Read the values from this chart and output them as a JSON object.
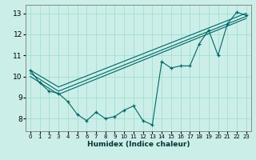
{
  "xlabel": "Humidex (Indice chaleur)",
  "background_color": "#cceee8",
  "grid_color": "#99ddcc",
  "line_color": "#006666",
  "xlim": [
    -0.5,
    23.5
  ],
  "ylim": [
    7.4,
    13.4
  ],
  "xticks": [
    0,
    1,
    2,
    3,
    4,
    5,
    6,
    7,
    8,
    9,
    10,
    11,
    12,
    13,
    14,
    15,
    16,
    17,
    18,
    19,
    20,
    21,
    22,
    23
  ],
  "yticks": [
    8,
    9,
    10,
    11,
    12,
    13
  ],
  "zigzag_x": [
    0,
    1,
    2,
    3,
    4,
    5,
    6,
    7,
    8,
    9,
    10,
    11,
    12,
    13,
    14,
    15,
    16,
    17,
    18,
    19,
    20,
    21,
    22,
    23
  ],
  "zigzag_y": [
    10.3,
    9.7,
    9.3,
    9.2,
    8.8,
    8.2,
    7.9,
    8.3,
    8.0,
    8.1,
    8.4,
    8.6,
    7.9,
    7.7,
    10.7,
    10.4,
    10.5,
    10.5,
    11.55,
    12.2,
    11.0,
    12.5,
    13.05,
    12.9
  ],
  "env_line1": {
    "x": [
      0,
      3,
      23
    ],
    "y": [
      10.3,
      9.5,
      13.0
    ]
  },
  "env_line2": {
    "x": [
      0,
      3,
      23
    ],
    "y": [
      10.15,
      9.3,
      12.85
    ]
  },
  "env_line3": {
    "x": [
      0,
      3,
      23
    ],
    "y": [
      10.0,
      9.15,
      12.75
    ]
  }
}
